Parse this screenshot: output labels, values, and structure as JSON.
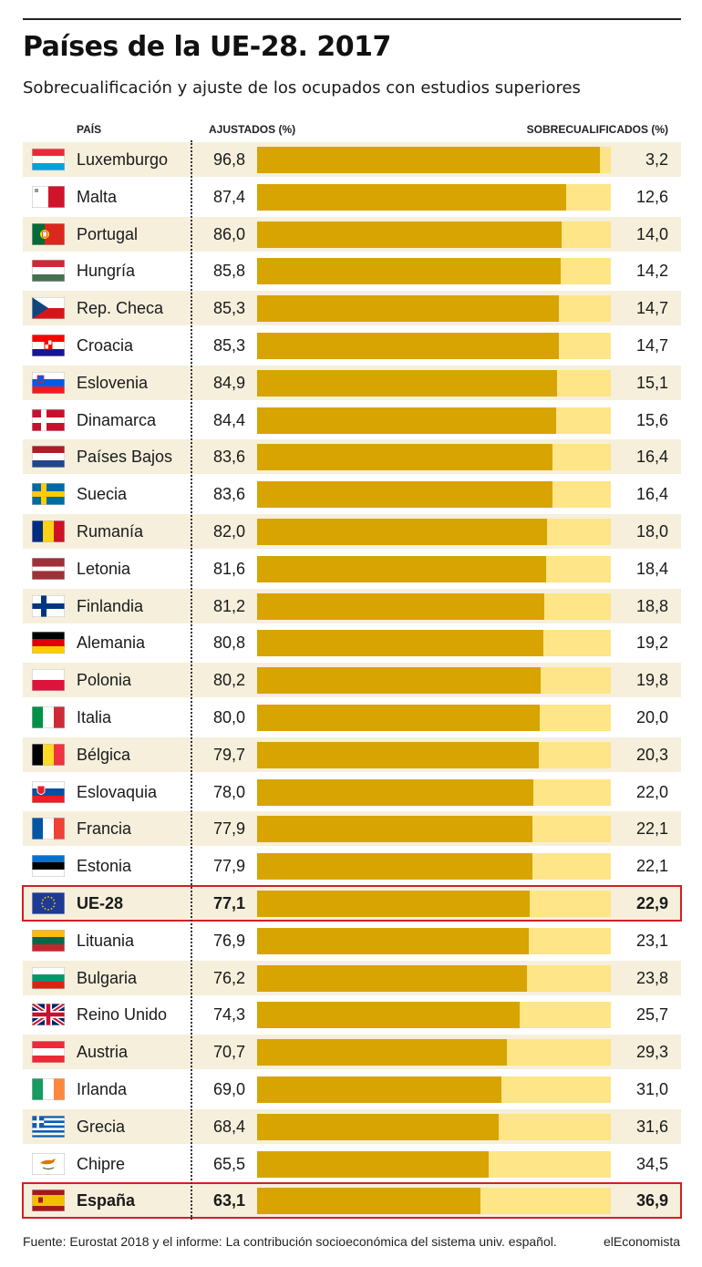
{
  "chart_data": {
    "type": "bar",
    "orientation": "horizontal",
    "stacked": true,
    "title": "Países de la UE-28. 2017",
    "subtitle": "Sobrecualificación y ajuste de los ocupados con estudios superiores",
    "headers": {
      "country": "PAÍS",
      "adjusted": "AJUSTADOS (%)",
      "overqualified": "SOBRECUALIFICADOS (%)"
    },
    "xlim": [
      0,
      100
    ],
    "source": "Fuente: Eurostat 2018 y el informe: La contribución socioeconómica del sistema univ. español.",
    "brand": "elEconomista",
    "colors": {
      "adjusted": "#d7a402",
      "overqualified": "#fde588",
      "row_shade": "#f5efdc",
      "highlight": "#d21f26"
    },
    "rows": [
      {
        "country": "Luxemburgo",
        "adjusted": 96.8,
        "adjusted_label": "96,8",
        "overqualified": 3.2,
        "overqualified_label": "3,2",
        "flag": "luxembourg"
      },
      {
        "country": "Malta",
        "adjusted": 87.4,
        "adjusted_label": "87,4",
        "overqualified": 12.6,
        "overqualified_label": "12,6",
        "flag": "malta"
      },
      {
        "country": "Portugal",
        "adjusted": 86.0,
        "adjusted_label": "86,0",
        "overqualified": 14.0,
        "overqualified_label": "14,0",
        "flag": "portugal"
      },
      {
        "country": "Hungría",
        "adjusted": 85.8,
        "adjusted_label": "85,8",
        "overqualified": 14.2,
        "overqualified_label": "14,2",
        "flag": "hungary"
      },
      {
        "country": "Rep. Checa",
        "adjusted": 85.3,
        "adjusted_label": "85,3",
        "overqualified": 14.7,
        "overqualified_label": "14,7",
        "flag": "czechia"
      },
      {
        "country": "Croacia",
        "adjusted": 85.3,
        "adjusted_label": "85,3",
        "overqualified": 14.7,
        "overqualified_label": "14,7",
        "flag": "croatia"
      },
      {
        "country": "Eslovenia",
        "adjusted": 84.9,
        "adjusted_label": "84,9",
        "overqualified": 15.1,
        "overqualified_label": "15,1",
        "flag": "slovenia"
      },
      {
        "country": "Dinamarca",
        "adjusted": 84.4,
        "adjusted_label": "84,4",
        "overqualified": 15.6,
        "overqualified_label": "15,6",
        "flag": "denmark"
      },
      {
        "country": "Países Bajos",
        "adjusted": 83.6,
        "adjusted_label": "83,6",
        "overqualified": 16.4,
        "overqualified_label": "16,4",
        "flag": "netherlands"
      },
      {
        "country": "Suecia",
        "adjusted": 83.6,
        "adjusted_label": "83,6",
        "overqualified": 16.4,
        "overqualified_label": "16,4",
        "flag": "sweden"
      },
      {
        "country": "Rumanía",
        "adjusted": 82.0,
        "adjusted_label": "82,0",
        "overqualified": 18.0,
        "overqualified_label": "18,0",
        "flag": "romania"
      },
      {
        "country": "Letonia",
        "adjusted": 81.6,
        "adjusted_label": "81,6",
        "overqualified": 18.4,
        "overqualified_label": "18,4",
        "flag": "latvia"
      },
      {
        "country": "Finlandia",
        "adjusted": 81.2,
        "adjusted_label": "81,2",
        "overqualified": 18.8,
        "overqualified_label": "18,8",
        "flag": "finland"
      },
      {
        "country": "Alemania",
        "adjusted": 80.8,
        "adjusted_label": "80,8",
        "overqualified": 19.2,
        "overqualified_label": "19,2",
        "flag": "germany"
      },
      {
        "country": "Polonia",
        "adjusted": 80.2,
        "adjusted_label": "80,2",
        "overqualified": 19.8,
        "overqualified_label": "19,8",
        "flag": "poland"
      },
      {
        "country": "Italia",
        "adjusted": 80.0,
        "adjusted_label": "80,0",
        "overqualified": 20.0,
        "overqualified_label": "20,0",
        "flag": "italy"
      },
      {
        "country": "Bélgica",
        "adjusted": 79.7,
        "adjusted_label": "79,7",
        "overqualified": 20.3,
        "overqualified_label": "20,3",
        "flag": "belgium"
      },
      {
        "country": "Eslovaquia",
        "adjusted": 78.0,
        "adjusted_label": "78,0",
        "overqualified": 22.0,
        "overqualified_label": "22,0",
        "flag": "slovakia"
      },
      {
        "country": "Francia",
        "adjusted": 77.9,
        "adjusted_label": "77,9",
        "overqualified": 22.1,
        "overqualified_label": "22,1",
        "flag": "france"
      },
      {
        "country": "Estonia",
        "adjusted": 77.9,
        "adjusted_label": "77,9",
        "overqualified": 22.1,
        "overqualified_label": "22,1",
        "flag": "estonia"
      },
      {
        "country": "UE-28",
        "adjusted": 77.1,
        "adjusted_label": "77,1",
        "overqualified": 22.9,
        "overqualified_label": "22,9",
        "flag": "eu",
        "highlight": true
      },
      {
        "country": "Lituania",
        "adjusted": 76.9,
        "adjusted_label": "76,9",
        "overqualified": 23.1,
        "overqualified_label": "23,1",
        "flag": "lithuania"
      },
      {
        "country": "Bulgaria",
        "adjusted": 76.2,
        "adjusted_label": "76,2",
        "overqualified": 23.8,
        "overqualified_label": "23,8",
        "flag": "bulgaria"
      },
      {
        "country": "Reino Unido",
        "adjusted": 74.3,
        "adjusted_label": "74,3",
        "overqualified": 25.7,
        "overqualified_label": "25,7",
        "flag": "united-kingdom"
      },
      {
        "country": "Austria",
        "adjusted": 70.7,
        "adjusted_label": "70,7",
        "overqualified": 29.3,
        "overqualified_label": "29,3",
        "flag": "austria"
      },
      {
        "country": "Irlanda",
        "adjusted": 69.0,
        "adjusted_label": "69,0",
        "overqualified": 31.0,
        "overqualified_label": "31,0",
        "flag": "ireland"
      },
      {
        "country": "Grecia",
        "adjusted": 68.4,
        "adjusted_label": "68,4",
        "overqualified": 31.6,
        "overqualified_label": "31,6",
        "flag": "greece"
      },
      {
        "country": "Chipre",
        "adjusted": 65.5,
        "adjusted_label": "65,5",
        "overqualified": 34.5,
        "overqualified_label": "34,5",
        "flag": "cyprus"
      },
      {
        "country": "España",
        "adjusted": 63.1,
        "adjusted_label": "63,1",
        "overqualified": 36.9,
        "overqualified_label": "36,9",
        "flag": "spain",
        "highlight": true
      }
    ]
  }
}
